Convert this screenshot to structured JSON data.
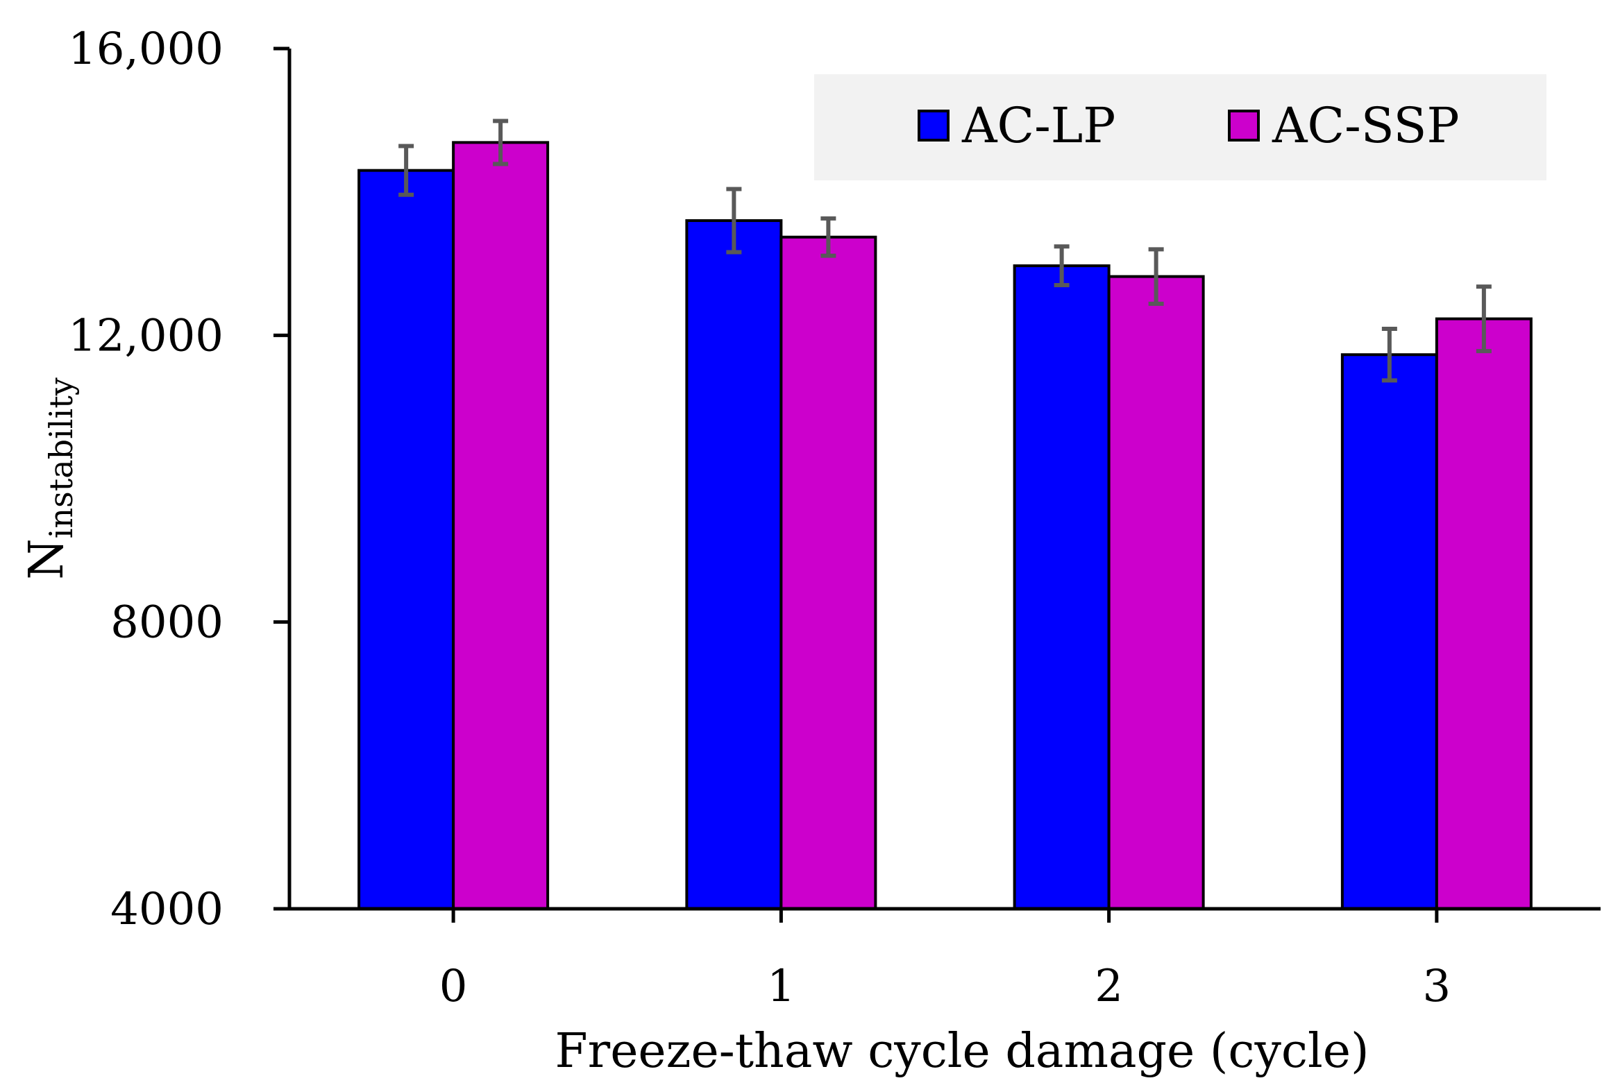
{
  "chart_data": {
    "type": "bar",
    "title": "",
    "xlabel": "Freeze-thaw cycle damage (cycle)",
    "ylabel": {
      "main": "N",
      "subscript": "instability"
    },
    "categories": [
      "0",
      "1",
      "2",
      "3"
    ],
    "ylim": [
      4000,
      16000
    ],
    "yticks": [
      4000,
      8000,
      12000,
      16000
    ],
    "ytick_labels": [
      "4000",
      "8000",
      "12,000",
      "16,000"
    ],
    "grid": false,
    "legend_position": "top-right",
    "series": [
      {
        "name": "AC-LP",
        "color": "#0000ff",
        "values": [
          14300,
          13600,
          12970,
          11730
        ],
        "errors": [
          340,
          440,
          270,
          360
        ]
      },
      {
        "name": "AC-SSP",
        "color": "#cc00cc",
        "values": [
          14690,
          13370,
          12820,
          12230
        ],
        "errors": [
          300,
          260,
          380,
          450
        ]
      }
    ],
    "error_bar_color": "#595959"
  }
}
